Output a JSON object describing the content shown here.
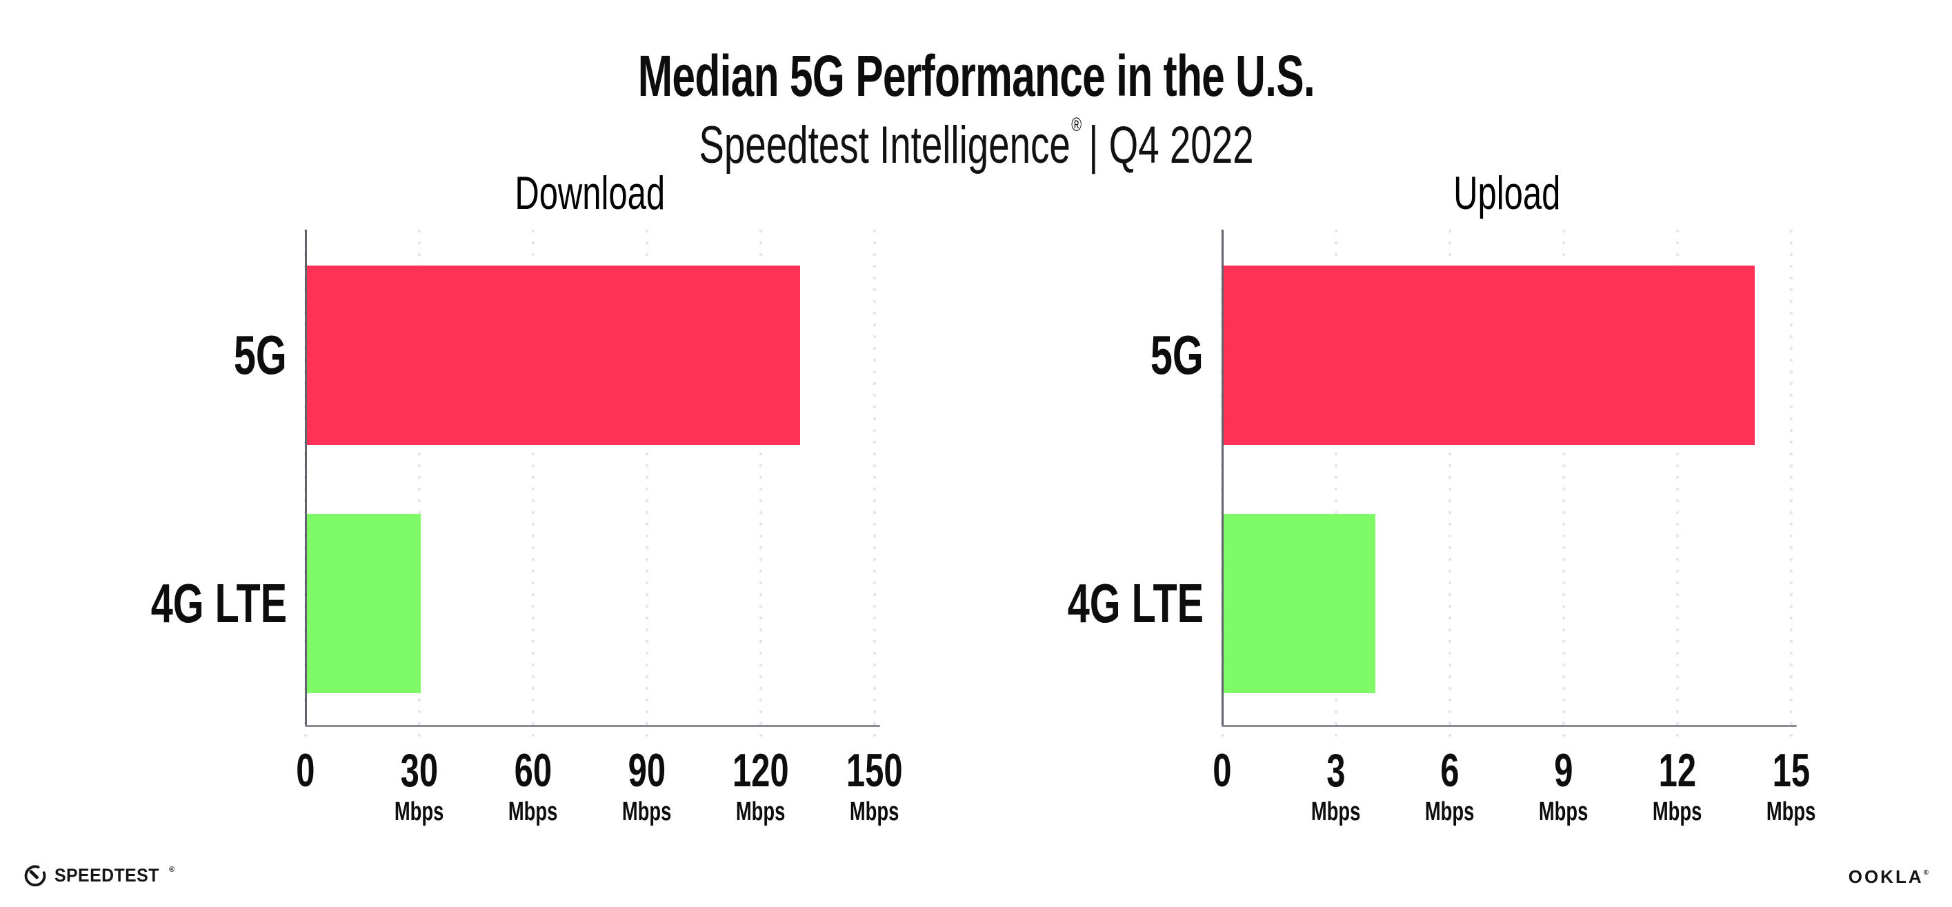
{
  "header": {
    "title": "Median 5G Performance in the U.S.",
    "subtitle_product": "Speedtest Intelligence",
    "subtitle_registered_mark": "®",
    "subtitle_rest": "| Q4 2022"
  },
  "colors": {
    "bar_5g_pink": "#ff3157",
    "bar_4g_green": "#7efb67",
    "x_axis": "#8a8a92",
    "y_axis": "#63636b",
    "grid_dots": "#e4e3ee",
    "text": "#0d0d0d"
  },
  "chart_data": [
    {
      "type": "bar",
      "orientation": "horizontal",
      "title": "Download",
      "categories": [
        "5G",
        "4G LTE"
      ],
      "values": [
        130,
        30
      ],
      "unit": "Mbps",
      "xlim": [
        0,
        150
      ],
      "xticks": [
        "0",
        "30",
        "60",
        "90",
        "120",
        "150"
      ],
      "grid": "dotted-vertical",
      "legend": "none",
      "bar_colors": [
        "#ff3157",
        "#7efb67"
      ]
    },
    {
      "type": "bar",
      "orientation": "horizontal",
      "title": "Upload",
      "categories": [
        "5G",
        "4G LTE"
      ],
      "values": [
        14,
        4
      ],
      "unit": "Mbps",
      "xlim": [
        0,
        15
      ],
      "xticks": [
        "0",
        "3",
        "6",
        "9",
        "12",
        "15"
      ],
      "grid": "dotted-vertical",
      "legend": "none",
      "bar_colors": [
        "#ff3157",
        "#7efb67"
      ]
    }
  ],
  "footer": {
    "speedtest_icon": "speedometer-gauge-icon",
    "speedtest_wordmark": "SPEEDTEST",
    "speedtest_mark": "®",
    "ookla_wordmark": "OOKLA",
    "ookla_mark": "®"
  }
}
